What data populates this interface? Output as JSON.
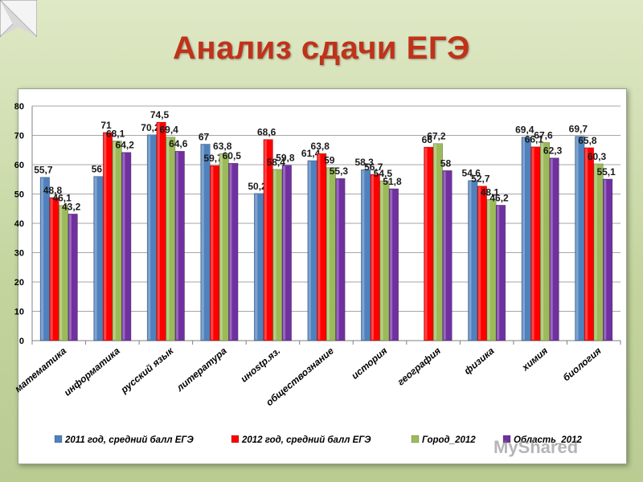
{
  "slide": {
    "title": "Анализ сдачи ЕГЭ",
    "watermark": "MyShared"
  },
  "chart_data": {
    "type": "bar",
    "ylim": [
      0,
      80
    ],
    "yticks": [
      0,
      10,
      20,
      30,
      40,
      50,
      60,
      70,
      80
    ],
    "grid": true,
    "legend_position": "bottom",
    "categories": [
      "математика",
      "информатика",
      "русский язык",
      "литература",
      "инostр.яз.",
      "обществознание",
      "история",
      "география",
      "физика",
      "химия",
      "биология"
    ],
    "series": [
      {
        "name": "2011 год, средний балл ЕГЭ",
        "color": "#4f81bd",
        "values": [
          55.7,
          56,
          70.2,
          67,
          50.2,
          61.4,
          58.3,
          null,
          54.6,
          69.4,
          69.7
        ],
        "labels": [
          "55,7",
          "56",
          "70,2",
          "67",
          "50,2",
          "61,4",
          "58,3",
          "",
          "54,6",
          "69,4",
          "69,7"
        ]
      },
      {
        "name": "2012 год, средний балл ЕГЭ",
        "color": "#ff0000",
        "values": [
          48.8,
          71,
          74.5,
          59.7,
          68.6,
          63.8,
          56.7,
          66,
          52.7,
          66.1,
          65.8
        ],
        "labels": [
          "48,8",
          "71",
          "74,5",
          "59,7",
          "68,6",
          "63,8",
          "56,7",
          "66",
          "52,7",
          "66,1",
          "65,8"
        ]
      },
      {
        "name": "Город_2012",
        "color": "#9bbb59",
        "values": [
          46.1,
          68.1,
          69.4,
          63.8,
          58.4,
          59,
          54.5,
          67.2,
          48.1,
          67.6,
          60.3
        ],
        "labels": [
          "46,1",
          "68,1",
          "69,4",
          "63,8",
          "58,4",
          "59",
          "54,5",
          "67,2",
          "48,1",
          "67,6",
          "60,3"
        ]
      },
      {
        "name": "Область_2012",
        "color": "#7030a0",
        "values": [
          43.2,
          64.2,
          64.6,
          60.5,
          59.8,
          55.3,
          51.8,
          58,
          46.2,
          62.3,
          55.1
        ],
        "labels": [
          "43,2",
          "64,2",
          "64,6",
          "60,5",
          "59,8",
          "55,3",
          "51,8",
          "58",
          "46,2",
          "62,3",
          "55,1"
        ]
      }
    ]
  }
}
